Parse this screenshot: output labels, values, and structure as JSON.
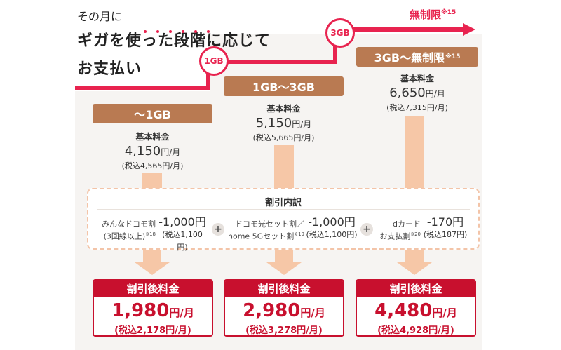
{
  "title": {
    "line1": "その月に",
    "line2": "ギガを使った段階に応じて",
    "line3": "お支払い"
  },
  "markers": {
    "m1": "1GB",
    "m2": "3GB",
    "unlimited": "無制限",
    "unlimited_note": "※15"
  },
  "tiers": [
    {
      "label": "～1GB",
      "label_note": "",
      "base_label": "基本料金",
      "amount": "4,150",
      "unit": "円/月",
      "tax": "(税込4,565円/月)"
    },
    {
      "label": "1GB～3GB",
      "label_note": "",
      "base_label": "基本料金",
      "amount": "5,150",
      "unit": "円/月",
      "tax": "(税込5,665円/月)"
    },
    {
      "label": "3GB～無制限",
      "label_note": "※15",
      "base_label": "基本料金",
      "amount": "6,650",
      "unit": "円/月",
      "tax": "(税込7,315円/月)"
    }
  ],
  "discount": {
    "title": "割引内訳",
    "items": [
      {
        "line1": "みんなドコモ割",
        "line2": "(3回線以上)",
        "note": "※18",
        "amount": "-1,000円",
        "tax": "(税込1,100円)"
      },
      {
        "line1": "ドコモ光セット割／",
        "line2": "home 5Gセット割",
        "note": "※19",
        "amount": "-1,000円",
        "tax": "(税込1,100円)"
      },
      {
        "line1": "dカード",
        "line2": "お支払割",
        "note": "※20",
        "amount": "-170円",
        "tax": "(税込187円)"
      }
    ],
    "plus": "+"
  },
  "results": [
    {
      "head": "割引後料金",
      "amount": "1,980",
      "unit": "円/月",
      "tax": "(税込2,178円/月)"
    },
    {
      "head": "割引後料金",
      "amount": "2,980",
      "unit": "円/月",
      "tax": "(税込3,278円/月)"
    },
    {
      "head": "割引後料金",
      "amount": "4,480",
      "unit": "円/月",
      "tax": "(税込4,928円/月)"
    }
  ],
  "colors": {
    "accent": "#e8234f",
    "tier_label": "#b97a52",
    "bar": "#f6c7a7",
    "result": "#c8102e"
  }
}
